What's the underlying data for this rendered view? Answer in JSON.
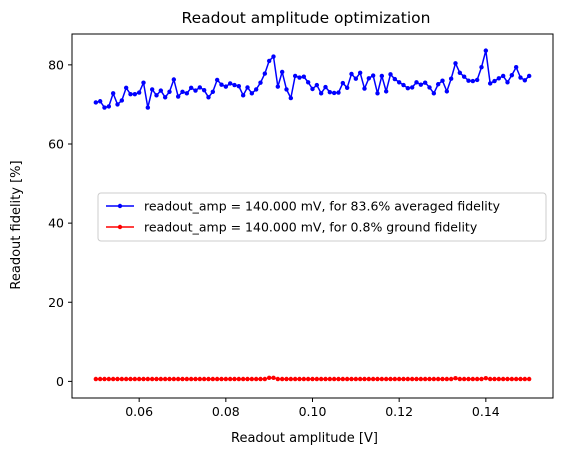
{
  "chart_data": {
    "type": "line",
    "title": "Readout amplitude optimization",
    "xlabel": "Readout amplitude [V]",
    "ylabel": "Readout fidelity [%]",
    "xlim": [
      0.0445,
      0.1555
    ],
    "ylim": [
      -4.2,
      87.8
    ],
    "xticks": [
      0.06,
      0.08,
      0.1,
      0.12,
      0.14
    ],
    "xtick_labels": [
      "0.06",
      "0.08",
      "0.10",
      "0.12",
      "0.14"
    ],
    "yticks": [
      0,
      20,
      40,
      60,
      80
    ],
    "ytick_labels": [
      "0",
      "20",
      "40",
      "60",
      "80"
    ],
    "grid": false,
    "legend_position": "center-right",
    "x_start": 0.05,
    "x_step": 0.001,
    "series": [
      {
        "name": "readout_amp = 140.000 mV, for 83.6% averaged fidelity",
        "color": "#0000ff",
        "values": [
          70.5,
          70.8,
          69.2,
          69.5,
          72.8,
          70.0,
          71.0,
          74.2,
          72.6,
          72.6,
          73.0,
          75.5,
          69.2,
          73.8,
          72.3,
          73.5,
          71.8,
          73.2,
          76.3,
          72.0,
          73.2,
          72.8,
          74.2,
          73.5,
          74.3,
          73.6,
          71.8,
          73.2,
          76.2,
          75.0,
          74.5,
          75.3,
          74.9,
          74.6,
          72.3,
          74.3,
          72.8,
          73.8,
          75.5,
          77.8,
          81.0,
          82.1,
          74.5,
          78.2,
          73.8,
          71.6,
          77.2,
          76.8,
          77.0,
          75.6,
          73.9,
          74.9,
          72.8,
          74.4,
          73.1,
          72.9,
          73.0,
          75.4,
          74.2,
          77.7,
          76.5,
          78.0,
          74.0,
          76.6,
          77.3,
          72.8,
          77.2,
          73.3,
          77.6,
          76.4,
          75.6,
          74.9,
          74.1,
          74.3,
          75.6,
          75.0,
          75.5,
          74.3,
          72.8,
          75.1,
          76.0,
          73.3,
          76.5,
          80.4,
          78.0,
          77.0,
          76.0,
          75.9,
          76.2,
          79.4,
          83.6,
          75.3,
          75.9,
          76.6,
          77.2,
          75.6,
          77.4,
          79.4,
          76.8,
          76.1,
          77.2
        ]
      },
      {
        "name": "readout_amp = 140.000 mV, for 0.8% ground fidelity",
        "color": "#ff0000",
        "values": [
          0.6,
          0.6,
          0.6,
          0.6,
          0.6,
          0.6,
          0.6,
          0.6,
          0.6,
          0.6,
          0.6,
          0.6,
          0.6,
          0.6,
          0.6,
          0.6,
          0.6,
          0.6,
          0.6,
          0.6,
          0.6,
          0.6,
          0.6,
          0.6,
          0.6,
          0.6,
          0.6,
          0.6,
          0.6,
          0.6,
          0.6,
          0.6,
          0.6,
          0.6,
          0.6,
          0.6,
          0.6,
          0.6,
          0.6,
          0.6,
          0.9,
          0.9,
          0.6,
          0.6,
          0.6,
          0.6,
          0.6,
          0.6,
          0.6,
          0.6,
          0.6,
          0.6,
          0.6,
          0.6,
          0.6,
          0.6,
          0.6,
          0.6,
          0.6,
          0.6,
          0.6,
          0.6,
          0.6,
          0.6,
          0.6,
          0.6,
          0.6,
          0.6,
          0.6,
          0.6,
          0.6,
          0.6,
          0.6,
          0.6,
          0.6,
          0.6,
          0.6,
          0.6,
          0.6,
          0.6,
          0.6,
          0.6,
          0.6,
          0.8,
          0.6,
          0.6,
          0.6,
          0.6,
          0.6,
          0.6,
          0.8,
          0.6,
          0.6,
          0.6,
          0.6,
          0.6,
          0.6,
          0.6,
          0.6,
          0.6,
          0.6
        ]
      }
    ]
  }
}
